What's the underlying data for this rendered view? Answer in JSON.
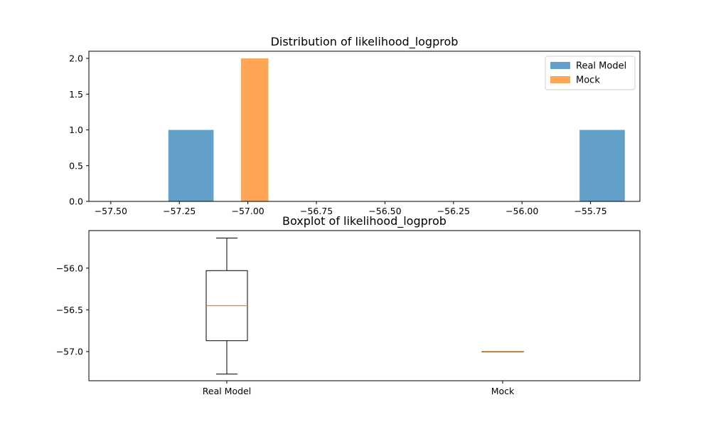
{
  "chart_data": [
    {
      "type": "histogram",
      "title": "Distribution of likelihood_logprob",
      "xlabel": "",
      "ylabel": "",
      "xlim": [
        -57.58,
        -55.57
      ],
      "ylim": [
        0,
        2.1
      ],
      "xticks": [
        -57.5,
        -57.25,
        -57.0,
        -56.75,
        -56.5,
        -56.25,
        -56.0,
        -55.75
      ],
      "xtick_labels": [
        "−57.50",
        "−57.25",
        "−57.00",
        "−56.75",
        "−56.50",
        "−56.25",
        "−56.00",
        "−55.75"
      ],
      "yticks": [
        0.0,
        0.5,
        1.0,
        1.5,
        2.0
      ],
      "ytick_labels": [
        "0.0",
        "0.5",
        "1.0",
        "1.5",
        "2.0"
      ],
      "legend": {
        "placement": "top-right",
        "entries": [
          "Real Model",
          "Mock"
        ]
      },
      "series": [
        {
          "name": "Real Model",
          "color": "#1f77b4",
          "bins": [
            {
              "x0": -57.29,
              "x1": -57.125,
              "count": 1
            },
            {
              "x0": -55.79,
              "x1": -55.625,
              "count": 1
            }
          ]
        },
        {
          "name": "Mock",
          "color": "#ff7f0e",
          "bins": [
            {
              "x0": -57.025,
              "x1": -56.925,
              "count": 2
            }
          ]
        }
      ]
    },
    {
      "type": "box",
      "title": "Boxplot of likelihood_logprob",
      "ylim": [
        -57.35,
        -55.55
      ],
      "yticks": [
        -57.0,
        -56.5,
        -56.0
      ],
      "ytick_labels": [
        "−57.0",
        "−56.5",
        "−56.0"
      ],
      "categories": [
        "Real Model",
        "Mock"
      ],
      "boxes": [
        {
          "name": "Real Model",
          "whisker_low": -57.27,
          "q1": -56.87,
          "median": -56.45,
          "q3": -56.03,
          "whisker_high": -55.64
        },
        {
          "name": "Mock",
          "whisker_low": -57.0,
          "q1": -57.0,
          "median": -57.0,
          "q3": -57.0,
          "whisker_high": -57.0
        }
      ],
      "median_color": "#ff7f0e"
    }
  ]
}
